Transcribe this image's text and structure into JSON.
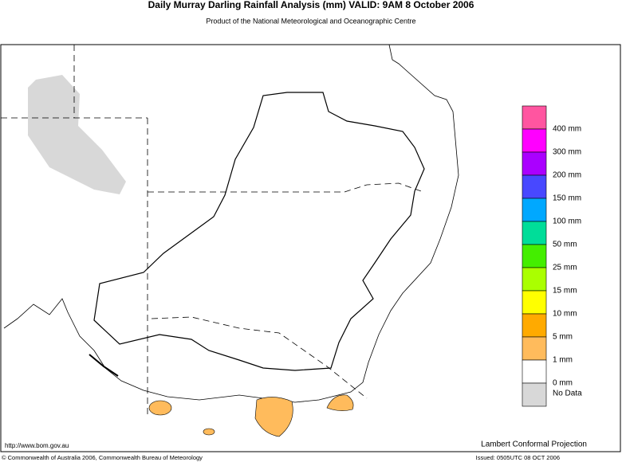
{
  "header": {
    "title": "Daily Murray Darling Rainfall Analysis (mm)  VALID: 9AM  8 October 2006",
    "subtitle": "Product of the National Meteorological and Oceanographic Centre"
  },
  "legend": {
    "colors": [
      "#ff55a0",
      "#ff00ff",
      "#aa00ff",
      "#4848ff",
      "#00a8ff",
      "#00dd99",
      "#44ee00",
      "#aaff00",
      "#ffff00",
      "#ffaa00",
      "#ffbb5c",
      "#ffffff",
      "#d8d8d8"
    ],
    "labels": [
      "400 mm",
      "300 mm",
      "200 mm",
      "150 mm",
      "100 mm",
      "50 mm",
      "25 mm",
      "15 mm",
      "10 mm",
      "5 mm",
      "1 mm",
      "0 mm",
      "No Data"
    ]
  },
  "footer": {
    "url": "http://www.bom.gov.au",
    "projection": "Lambert Conformal Projection",
    "copyright": "© Commonwealth of Australia 2006, Commonwealth Bureau of Meteorology",
    "issued": "Issued: 0505UTC 08 OCT 2006"
  }
}
